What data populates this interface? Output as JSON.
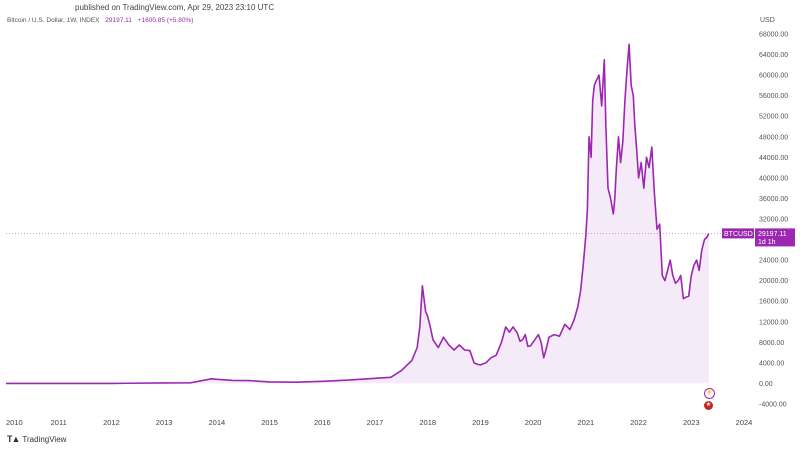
{
  "header": {
    "published": "published on TradingView.com, Apr 29, 2023 23:10 UTC"
  },
  "legend": {
    "title": "Bitcoin / U.S. Dollar, 1W, INDEX",
    "value": "29197.11",
    "change": "+1600.85 (+5.80%)"
  },
  "axis": {
    "unit": "USD"
  },
  "price_tag": {
    "symbol": "BTCUSD",
    "value": "29197.11",
    "time": "1d 1h"
  },
  "footer": {
    "brand": "TradingView"
  },
  "icons": {
    "bolt": "lightning-icon",
    "flag": "us-flag-icon"
  },
  "colors": {
    "line": "#9c27b0",
    "fill": "#f3e5f5",
    "tag": "#9c27b0"
  },
  "chart_data": {
    "type": "area",
    "title": "Bitcoin / U.S. Dollar, 1W, INDEX",
    "ylabel": "USD",
    "ylim": [
      -4000,
      68000
    ],
    "xlim": [
      2010.0,
      2024.0
    ],
    "y_ticks": [
      "68000.00",
      "64000.00",
      "60000.00",
      "56000.00",
      "52000.00",
      "48000.00",
      "44000.00",
      "40000.00",
      "36000.00",
      "32000.00",
      "28000.00",
      "24000.00",
      "20000.00",
      "16000.00",
      "12000.00",
      "8000.00",
      "4000.00",
      "0.00",
      "-4000.00"
    ],
    "y_tick_values": [
      68000,
      64000,
      60000,
      56000,
      52000,
      48000,
      44000,
      40000,
      36000,
      32000,
      28000,
      24000,
      20000,
      16000,
      12000,
      8000,
      4000,
      0,
      -4000
    ],
    "x_ticks": [
      "2010",
      "2011",
      "2012",
      "2013",
      "2014",
      "2015",
      "2016",
      "2017",
      "2018",
      "2019",
      "2020",
      "2021",
      "2022",
      "2023",
      "2024"
    ],
    "x_tick_values": [
      2010,
      2011,
      2012,
      2013,
      2014,
      2015,
      2016,
      2017,
      2018,
      2019,
      2020,
      2021,
      2022,
      2023,
      2024
    ],
    "current_price": 29197.11,
    "series": [
      {
        "x": [
          2010.0,
          2011.0,
          2012.0,
          2013.0,
          2013.5,
          2013.9,
          2014.0,
          2014.3,
          2014.6,
          2015.0,
          2015.5,
          2016.0,
          2016.5,
          2017.0,
          2017.3,
          2017.5,
          2017.7,
          2017.8,
          2017.85,
          2017.9,
          2017.96,
          2018.0,
          2018.05,
          2018.1,
          2018.2,
          2018.3,
          2018.4,
          2018.5,
          2018.6,
          2018.7,
          2018.8,
          2018.88,
          2018.95,
          2019.0,
          2019.1,
          2019.2,
          2019.3,
          2019.4,
          2019.48,
          2019.55,
          2019.62,
          2019.7,
          2019.75,
          2019.8,
          2019.85,
          2019.9,
          2019.95,
          2020.0,
          2020.1,
          2020.15,
          2020.2,
          2020.25,
          2020.3,
          2020.4,
          2020.5,
          2020.6,
          2020.7,
          2020.78,
          2020.85,
          2020.9,
          2020.95,
          2021.0,
          2021.03,
          2021.06,
          2021.1,
          2021.13,
          2021.16,
          2021.2,
          2021.25,
          2021.3,
          2021.35,
          2021.38,
          2021.42,
          2021.47,
          2021.52,
          2021.55,
          2021.58,
          2021.62,
          2021.66,
          2021.7,
          2021.74,
          2021.78,
          2021.82,
          2021.86,
          2021.9,
          2021.93,
          2021.96,
          2022.0,
          2022.05,
          2022.1,
          2022.15,
          2022.2,
          2022.25,
          2022.3,
          2022.35,
          2022.4,
          2022.45,
          2022.5,
          2022.55,
          2022.6,
          2022.65,
          2022.7,
          2022.75,
          2022.8,
          2022.85,
          2022.9,
          2022.95,
          2023.0,
          2023.05,
          2023.1,
          2023.15,
          2023.2,
          2023.25,
          2023.3,
          2023.33
        ],
        "values": [
          0,
          0,
          5,
          100,
          120,
          900,
          800,
          600,
          550,
          300,
          250,
          420,
          650,
          1000,
          1200,
          2500,
          4500,
          7000,
          11000,
          19000,
          14000,
          13000,
          11000,
          8500,
          7000,
          9000,
          7500,
          6500,
          7500,
          6500,
          6400,
          4000,
          3700,
          3600,
          4000,
          5000,
          5500,
          8000,
          11000,
          10000,
          11000,
          9800,
          8200,
          8500,
          9500,
          7200,
          7300,
          8000,
          9500,
          8000,
          5000,
          6800,
          9000,
          9500,
          9200,
          11500,
          10500,
          12500,
          15000,
          18000,
          23000,
          29000,
          34000,
          48000,
          44000,
          55000,
          58000,
          59000,
          60000,
          54000,
          63000,
          50000,
          38000,
          36000,
          33000,
          36000,
          42000,
          48000,
          43000,
          47000,
          55000,
          61000,
          66000,
          58000,
          56000,
          50000,
          46000,
          40000,
          43000,
          38000,
          44000,
          42000,
          46000,
          37000,
          30000,
          31000,
          21000,
          20000,
          22000,
          24000,
          21000,
          19500,
          20000,
          21000,
          16500,
          16800,
          17000,
          21000,
          23000,
          24000,
          22000,
          26000,
          28000,
          28500,
          29197
        ]
      }
    ]
  }
}
